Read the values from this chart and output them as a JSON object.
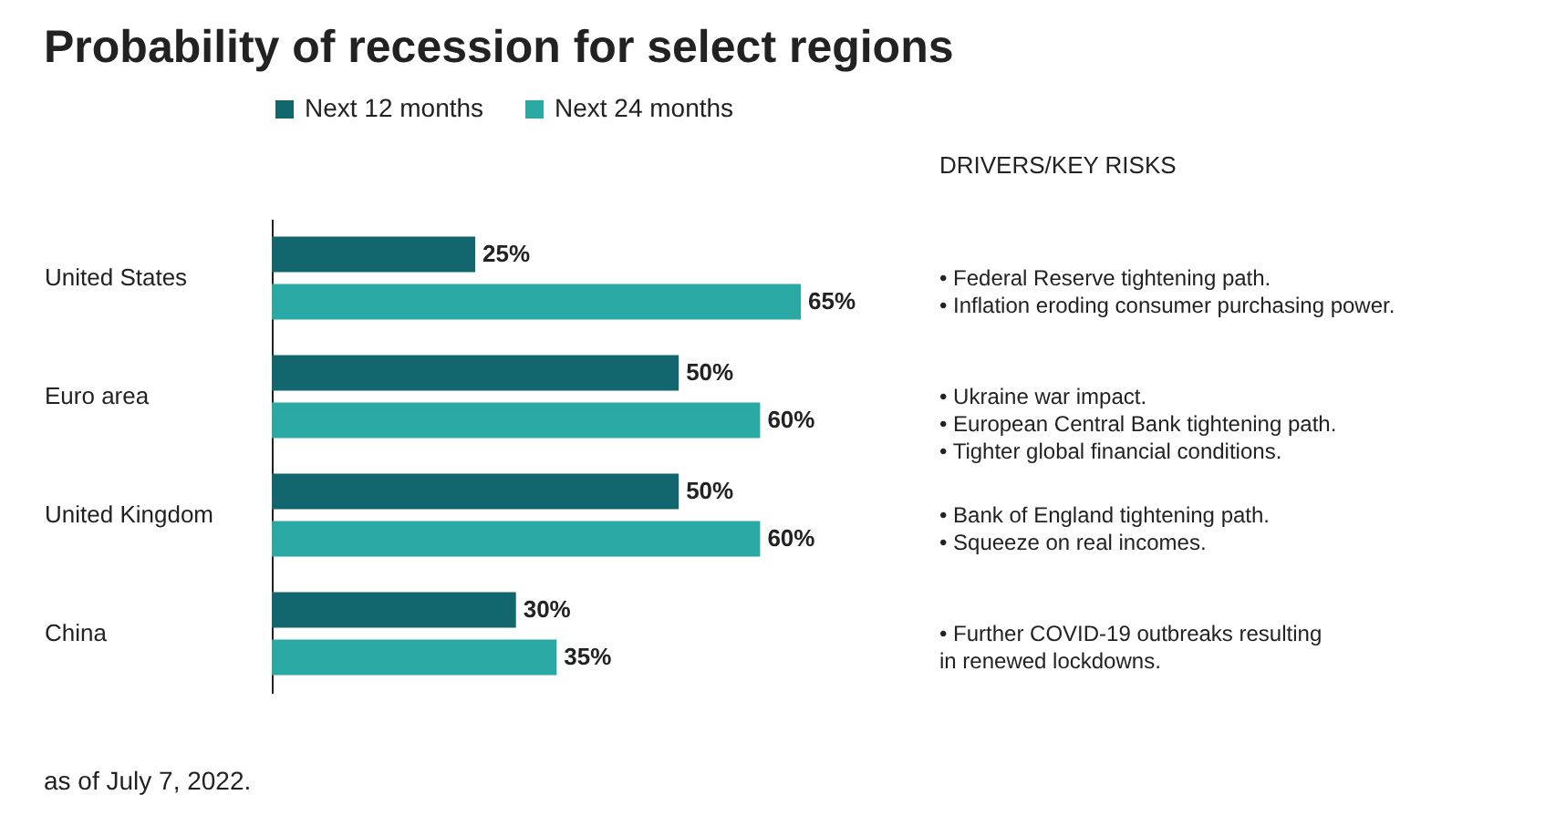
{
  "chart_data": {
    "type": "bar",
    "orientation": "horizontal",
    "title": "Probability of recession for select regions",
    "legend": "top",
    "categories": [
      "United States",
      "Euro area",
      "United Kingdom",
      "China"
    ],
    "series": [
      {
        "name": "Next 12 months",
        "color": "#14666e",
        "values": [
          25,
          50,
          50,
          30
        ],
        "value_labels": [
          "25%",
          "50%",
          "50%",
          "30%"
        ]
      },
      {
        "name": "Next 24 months",
        "color": "#2aa8a4",
        "values": [
          65,
          60,
          60,
          35
        ],
        "value_labels": [
          "65%",
          "60%",
          "60%",
          "35%"
        ]
      }
    ],
    "annotations": [
      "DRIVERS/KEY RISKS",
      "• Federal Reserve tightening path.\n• Inflation eroding consumer purchasing power.",
      "• Ukraine war impact.\n• European Central Bank tightening path.\n• Tighter global financial conditions.",
      "• Bank of England tightening path.\n• Squeeze on real incomes.",
      "• Further COVID-19 outbreaks resulting\n  in renewed lockdowns.",
      "as of July 7, 2022."
    ]
  }
}
